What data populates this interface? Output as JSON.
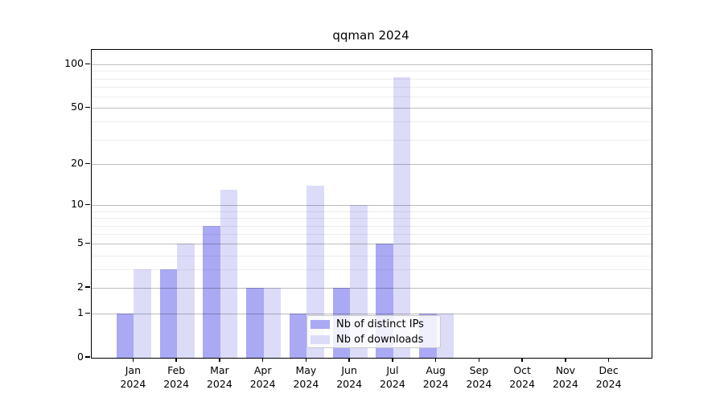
{
  "title": "qqman 2024",
  "chart_data": {
    "type": "bar",
    "title": "qqman 2024",
    "categories": [
      "Jan 2024",
      "Feb 2024",
      "Mar 2024",
      "Apr 2024",
      "May 2024",
      "Jun 2024",
      "Jul 2024",
      "Aug 2024",
      "Sep 2024",
      "Oct 2024",
      "Nov 2024",
      "Dec 2024"
    ],
    "series": [
      {
        "name": "Nb of distinct IPs",
        "color": "#a9a9f4",
        "values": [
          1,
          3,
          7,
          2,
          1,
          2,
          5,
          1,
          0,
          0,
          0,
          0
        ]
      },
      {
        "name": "Nb of downloads",
        "color": "#dcdcf9",
        "values": [
          3,
          5,
          13,
          2,
          14,
          10,
          82,
          1,
          0,
          0,
          0,
          0
        ]
      }
    ],
    "y_scale": "log1p",
    "y_ticks": [
      0,
      1,
      2,
      5,
      10,
      20,
      50,
      100
    ],
    "y_minor_ticks": [
      3,
      4,
      6,
      7,
      8,
      9,
      30,
      40,
      60,
      70,
      80,
      90
    ],
    "ylim": [
      0,
      120
    ],
    "grid": true,
    "legend_position": "lower center",
    "axis_color": "#000000",
    "major_grid_color": "#c2c2c2",
    "minor_grid_color": "#ececec"
  }
}
